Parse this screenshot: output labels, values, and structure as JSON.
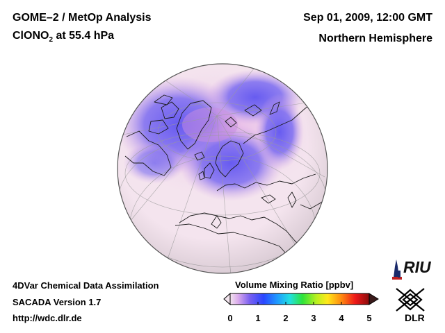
{
  "header": {
    "title": "GOME–2 / MetOp Analysis",
    "species": "ClONO",
    "species_subscript": "2",
    "level": "at 55.4 hPa",
    "datetime": "Sep 01, 2009, 12:00 GMT",
    "region": "Northern Hemisphere"
  },
  "footer": {
    "system_line1": "4DVar Chemical Data Assimilation",
    "system_line2": "SACADA Version 1.7",
    "url": "http://wdc.dlr.de"
  },
  "colorbar": {
    "title": "Volume Mixing Ratio [ppbv]",
    "ticks": [
      "0",
      "1",
      "2",
      "3",
      "4",
      "5"
    ],
    "min": 0,
    "max": 5
  },
  "logos": {
    "riu": "RIU",
    "dlr": "DLR"
  },
  "colors": {
    "globe_background": "#f3e2ec",
    "low_values": "#6a5ef0",
    "mid_low": "#d58fe0",
    "coastline": "#1a1a1a",
    "graticule": "#a0a0a0"
  }
}
